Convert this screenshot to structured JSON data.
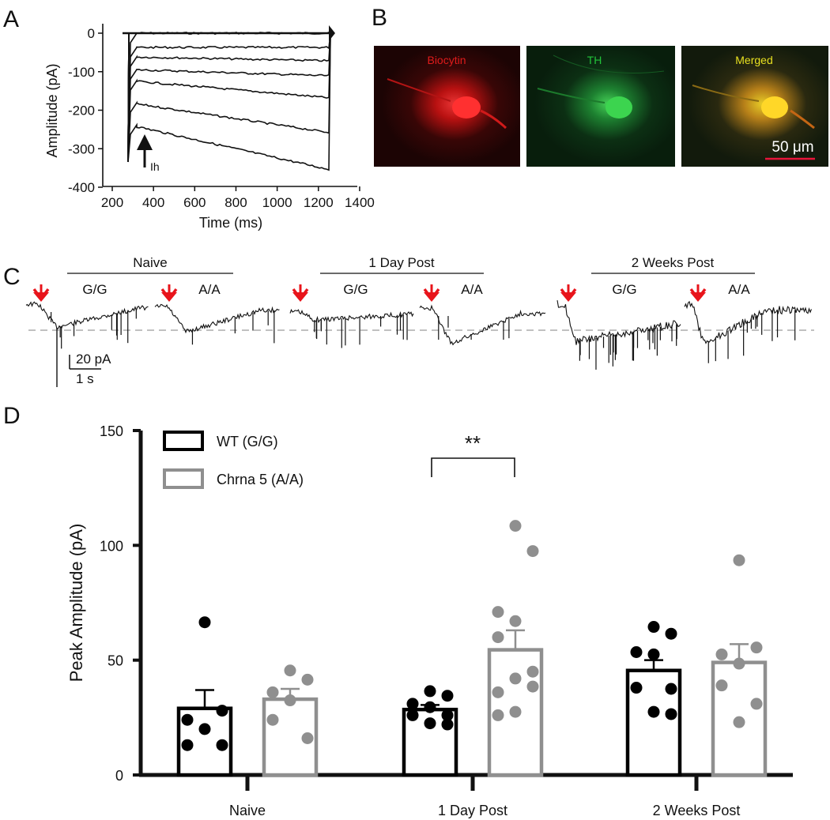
{
  "panels": {
    "a": "A",
    "b": "B",
    "c": "C",
    "d": "D"
  },
  "panel_a": {
    "ylabel": "Amplitude (pA)",
    "xlabel": "Time (ms)",
    "yticks": [
      "0",
      "-100",
      "-200",
      "-300",
      "-400"
    ],
    "xticks": [
      "200",
      "400",
      "600",
      "800",
      "1000",
      "1200",
      "1400"
    ],
    "arrow_label": "Ih"
  },
  "panel_b": {
    "images": [
      {
        "label": "Biocytin",
        "color": "#e01b1b"
      },
      {
        "label": "TH",
        "color": "#22c33a"
      },
      {
        "label": "Merged",
        "color": "#e8e020"
      }
    ],
    "scale_bar": "50 μm"
  },
  "panel_c": {
    "groups": [
      "Naive",
      "1 Day Post",
      "2 Weeks Post"
    ],
    "genotypes": [
      "G/G",
      "A/A"
    ],
    "scale_current": "20 pA",
    "scale_time": "1 s",
    "arrow_color": "#e8141b"
  },
  "chart_data": {
    "type": "bar",
    "title": "",
    "xlabel": "",
    "ylabel": "Peak Amplitude (pA)",
    "ylim": [
      0,
      150
    ],
    "yticks": [
      0,
      50,
      100,
      150
    ],
    "categories": [
      "Naive",
      "1 Day Post",
      "2 Weeks Post"
    ],
    "significance": "**",
    "series": [
      {
        "name": "WT (G/G)",
        "color": "#000000",
        "means": [
          29,
          28.5,
          45.5
        ],
        "sem": [
          8,
          2,
          4.5
        ],
        "points": [
          [
            66.5,
            28,
            24,
            20,
            13,
            13
          ],
          [
            36.5,
            34.5,
            31,
            29.5,
            26,
            26,
            22.5,
            22
          ],
          [
            64.5,
            61.5,
            53.5,
            52.5,
            38,
            37.5,
            27.5,
            26.5
          ]
        ]
      },
      {
        "name": "Chrna 5 (A/A)",
        "color": "#8f8f8f",
        "means": [
          33,
          54.5,
          49
        ],
        "sem": [
          4.5,
          8.5,
          8
        ],
        "points": [
          [
            45.5,
            41.5,
            36,
            32.5,
            24,
            16
          ],
          [
            108.5,
            97.5,
            71,
            67,
            60,
            45,
            42,
            38.5,
            36,
            27.5,
            26
          ],
          [
            93.5,
            55.5,
            52.5,
            48.5,
            39,
            31,
            23
          ]
        ]
      }
    ]
  }
}
